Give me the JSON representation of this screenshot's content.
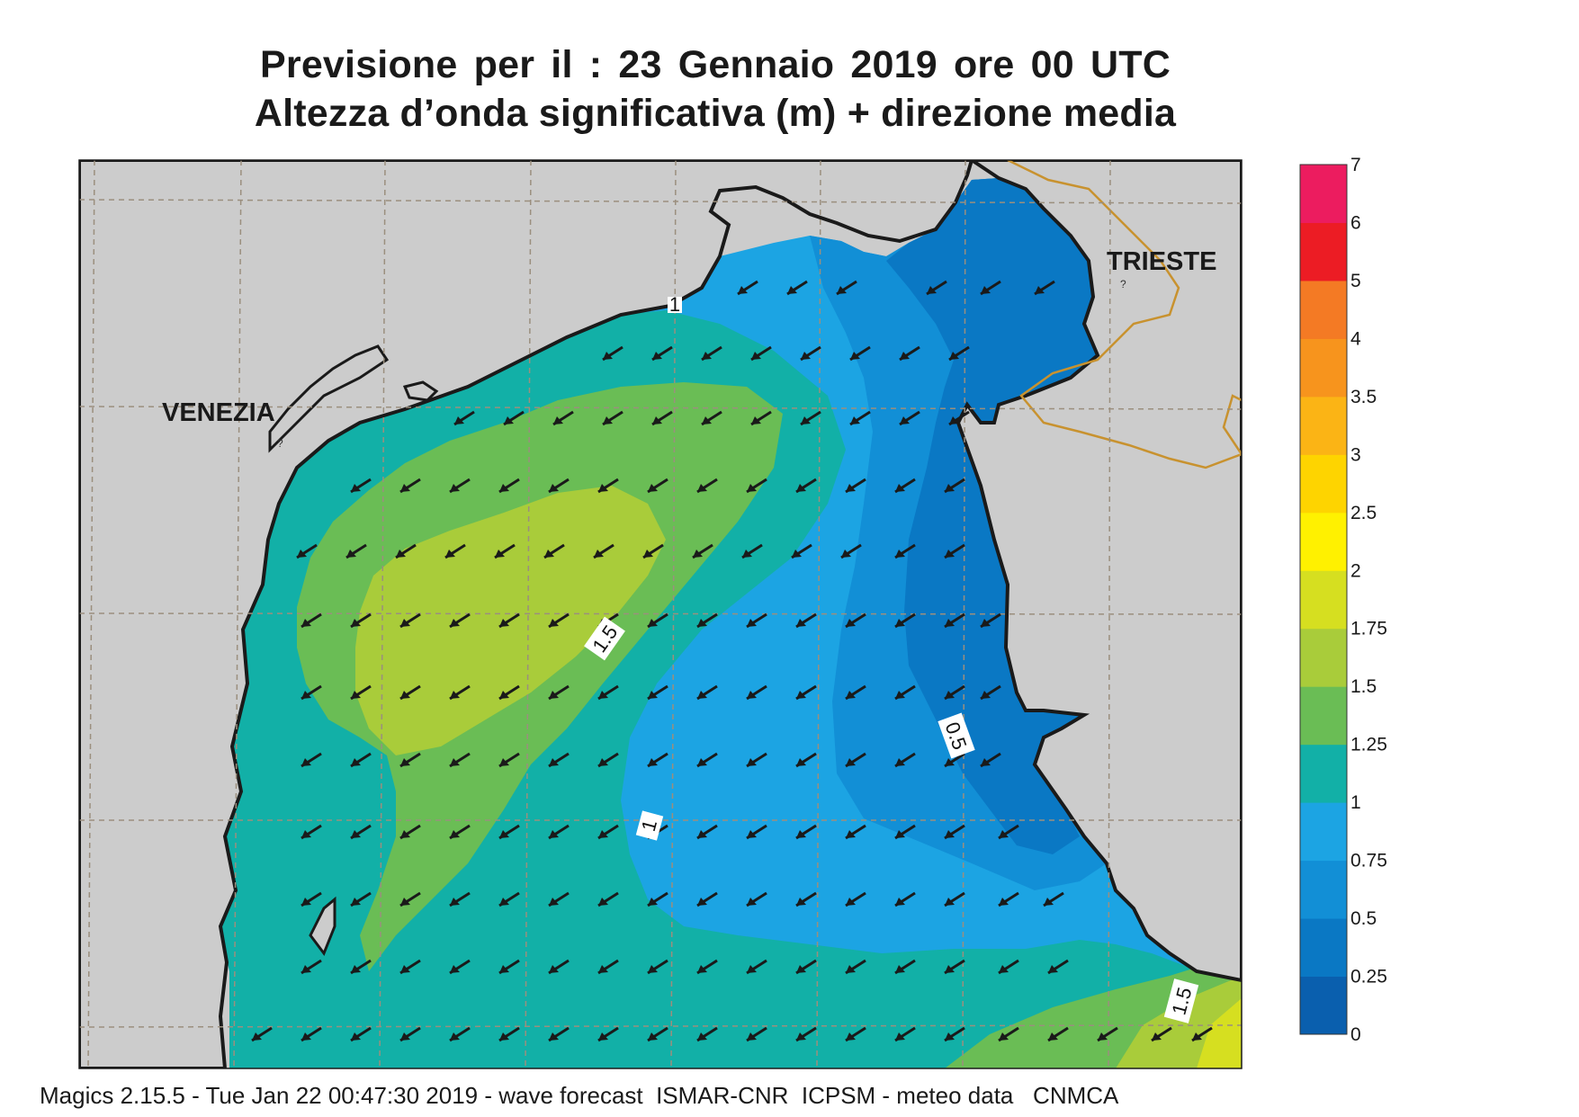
{
  "title": {
    "line1": "Previsione per il  :  23  Gennaio  2019   ore 00 UTC",
    "line2": "Altezza d’onda significativa (m) + direzione media"
  },
  "places": {
    "venezia": "VENEZIA",
    "trieste": "TRIESTE"
  },
  "contour_labels": {
    "c15a": "1.5",
    "c05": "0.5",
    "c1": "1",
    "c15b": "1.5",
    "top": "1"
  },
  "legend": {
    "levels": [
      "0",
      "0.25",
      "0.5",
      "0.75",
      "1",
      "1.25",
      "1.5",
      "1.75",
      "2",
      "2.5",
      "3",
      "3.5",
      "4",
      "5",
      "6",
      "7"
    ],
    "colors": [
      "#0a5fae",
      "#0a78c4",
      "#128fd6",
      "#1ca4e3",
      "#12b0a7",
      "#6abd55",
      "#a9cc3a",
      "#d6df20",
      "#fff100",
      "#fed400",
      "#fbb415",
      "#f7941d",
      "#f47a24",
      "#ec1c24",
      "#ec1c5f"
    ]
  },
  "colors": {
    "land": "#cccccc",
    "coast": "#1a1a1a",
    "border": "#c8922f",
    "grid": "#9b8f7e",
    "arrow": "#1a1a1a"
  },
  "arrow_direction_label": "direzione media (frecce)",
  "footer": "Magics 2.15.5 - Tue Jan 22 00:47:30 2019 - wave forecast  ISMAR-CNR  ICPSM - meteo data   CNMCA"
}
